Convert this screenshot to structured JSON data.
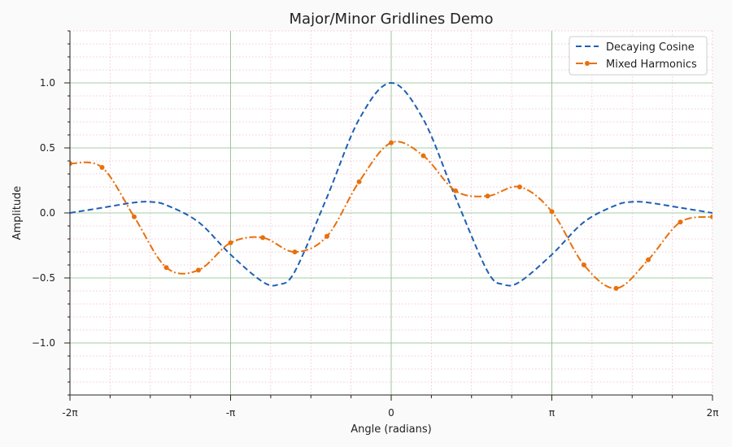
{
  "chart_data": {
    "type": "line",
    "title": "Major/Minor Gridlines Demo",
    "xlabel": "Angle (radians)",
    "ylabel": "Amplitude",
    "xlim": [
      -6.2832,
      6.2832
    ],
    "ylim": [
      -1.4,
      1.4
    ],
    "x_ticks": [
      {
        "value": -6.2832,
        "label": "-2π"
      },
      {
        "value": -3.1416,
        "label": "-π"
      },
      {
        "value": 0,
        "label": "0"
      },
      {
        "value": 3.1416,
        "label": "π"
      },
      {
        "value": 6.2832,
        "label": "2π"
      }
    ],
    "y_ticks": [
      {
        "value": -1.0,
        "label": "−1.0"
      },
      {
        "value": -0.5,
        "label": "−0.5"
      },
      {
        "value": 0.0,
        "label": "0.0"
      },
      {
        "value": 0.5,
        "label": "0.5"
      },
      {
        "value": 1.0,
        "label": "1.0"
      }
    ],
    "grid": {
      "major": true,
      "minor": true,
      "major_color": "#88bb88",
      "minor_color": "#f2b8cc"
    },
    "legend": {
      "placement": "top-right"
    },
    "series": [
      {
        "name": "Decaying Cosine",
        "color": "#1f5fb4",
        "style": "dashed",
        "markers": false,
        "x": [
          -6.2832,
          -5.655,
          -5.027,
          -4.712,
          -4.398,
          -3.77,
          -3.142,
          -2.513,
          -2.199,
          -1.885,
          -1.257,
          -0.628,
          0,
          0.628,
          1.257,
          1.885,
          2.199,
          2.513,
          3.142,
          3.77,
          4.398,
          4.712,
          5.027,
          5.655,
          6.2832
        ],
        "y": [
          0.0,
          0.04,
          0.08,
          0.085,
          0.06,
          -0.07,
          -0.32,
          -0.53,
          -0.55,
          -0.45,
          0.12,
          0.72,
          1.0,
          0.72,
          0.12,
          -0.45,
          -0.55,
          -0.53,
          -0.32,
          -0.07,
          0.06,
          0.085,
          0.08,
          0.04,
          0.0
        ]
      },
      {
        "name": "Mixed Harmonics",
        "color": "#e8700d",
        "style": "dashdot",
        "markers": true,
        "x": [
          -6.2832,
          -5.655,
          -5.027,
          -4.398,
          -3.77,
          -3.142,
          -2.513,
          -1.885,
          -1.257,
          -0.628,
          0,
          0.628,
          1.257,
          1.885,
          2.513,
          3.142,
          3.77,
          4.398,
          5.027,
          5.655,
          6.2832
        ],
        "y": [
          0.38,
          0.35,
          -0.03,
          -0.42,
          -0.44,
          -0.23,
          -0.19,
          -0.3,
          -0.18,
          0.24,
          0.54,
          0.44,
          0.17,
          0.13,
          0.2,
          0.01,
          -0.4,
          -0.58,
          -0.36,
          -0.07,
          -0.03
        ]
      }
    ]
  }
}
